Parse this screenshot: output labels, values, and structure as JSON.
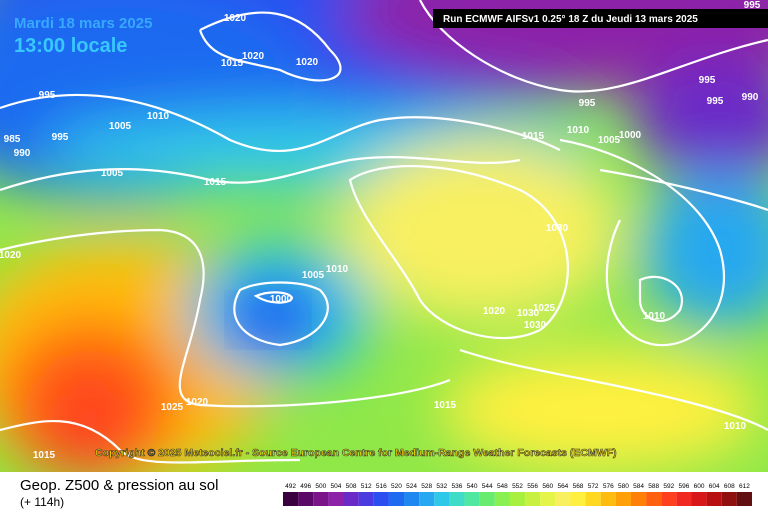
{
  "header": {
    "date": "Mardi 18 mars 2025",
    "time": "13:00 locale",
    "run": "Run ECMWF AIFSv1 0.25° 18 Z du Jeudi 13 mars 2025"
  },
  "copyright": "Copyright © 2025 Meteociel.fr - Source European Centre for Medium-Range Weather Forecasts (ECMWF)",
  "isobars": {
    "labels": [
      "1020",
      "1020",
      "1015",
      "1020",
      "995",
      "1010",
      "1005",
      "985",
      "995",
      "990",
      "1005",
      "1015",
      "1020",
      "1005",
      "1010",
      "1000",
      "1025",
      "1020",
      "1015",
      "1015",
      "995",
      "1015",
      "1010",
      "1005",
      "1000",
      "995",
      "995",
      "990",
      "995",
      "1030",
      "1020",
      "1025",
      "1030",
      "1030",
      "1010",
      "1010"
    ]
  },
  "footer": {
    "title": "Geop. Z500 & pression au sol",
    "step": "(+ 114h)"
  },
  "legend": {
    "labels": [
      "492",
      "496",
      "500",
      "504",
      "508",
      "512",
      "516",
      "520",
      "524",
      "528",
      "532",
      "536",
      "540",
      "544",
      "548",
      "552",
      "556",
      "560",
      "564",
      "568",
      "572",
      "576",
      "580",
      "584",
      "588",
      "592",
      "596",
      "600",
      "604",
      "608",
      "612"
    ],
    "colors": [
      "#3a0040",
      "#5a0a66",
      "#7a1488",
      "#8c22a8",
      "#6a2ac8",
      "#4a3ae0",
      "#2a4ef0",
      "#1e6af0",
      "#1e88f0",
      "#28a8f0",
      "#30c8e8",
      "#40dcc8",
      "#50e8a0",
      "#68ec70",
      "#88f050",
      "#a8f040",
      "#c8f040",
      "#e4f448",
      "#f8f060",
      "#fff040",
      "#ffd820",
      "#ffbc10",
      "#ffa008",
      "#ff8008",
      "#ff6010",
      "#ff4020",
      "#f02820",
      "#d81818",
      "#b81010",
      "#901010",
      "#601010"
    ]
  }
}
